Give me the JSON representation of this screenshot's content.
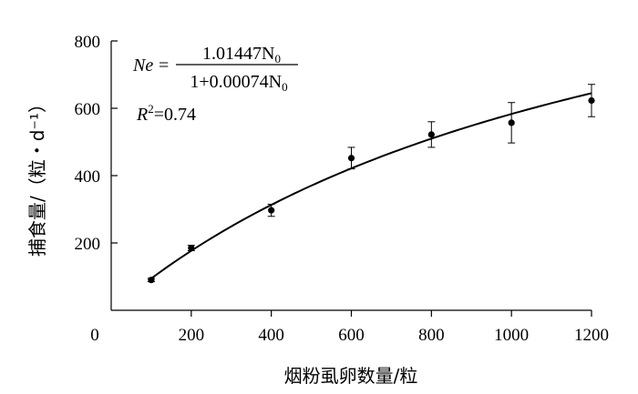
{
  "chart_data": {
    "type": "scatter",
    "title": "",
    "xlabel": "烟粉虱卵数量/粒",
    "ylabel": "捕食量/（粒・d⁻¹）",
    "xlim": [
      0,
      1200
    ],
    "ylim": [
      0,
      800
    ],
    "x_ticks": [
      "0",
      "200",
      "400",
      "600",
      "800",
      "1000",
      "1200"
    ],
    "y_ticks": [
      "200",
      "400",
      "600",
      "800"
    ],
    "grid": false,
    "legend": "none",
    "series": [
      {
        "x": [
          100,
          200,
          400,
          600,
          800,
          1000,
          1200
        ],
        "values": [
          90,
          185,
          297,
          452,
          522,
          557,
          623
        ],
        "error": [
          5,
          8,
          18,
          32,
          38,
          60,
          48
        ]
      }
    ],
    "fit": {
      "type": "curve",
      "a": 1.01447,
      "b": 0.00074,
      "x_range": [
        100,
        1200
      ]
    },
    "equation": {
      "lhs": "Ne",
      "equals": "=",
      "numerator": "1.01447N",
      "denominator": "1+0.00074N",
      "subscript": "0",
      "r2_label": "R",
      "r2_sup": "2",
      "r2_value": "=0.74"
    }
  }
}
